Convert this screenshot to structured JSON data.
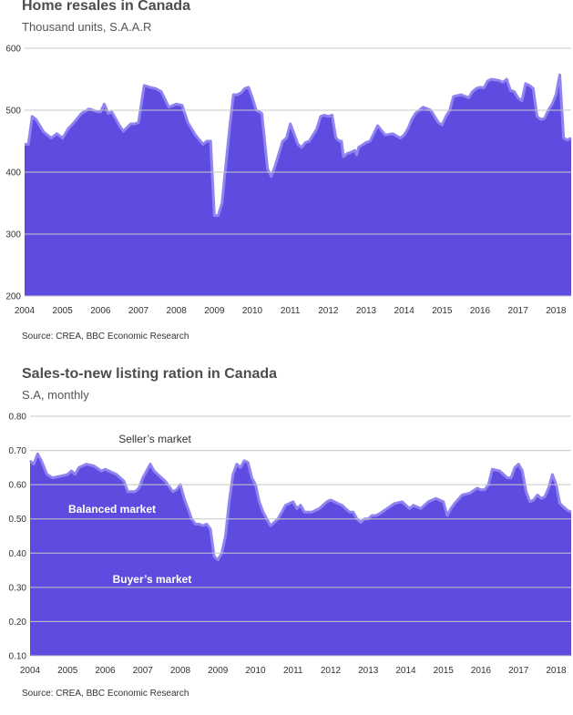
{
  "chart_data": [
    {
      "type": "area",
      "title": "Home resales in Canada",
      "subtitle": "Thousand units, S.A.A.R",
      "source": "Source: CREA, BBC Economic Research",
      "ylim": [
        200,
        600
      ],
      "xlim": [
        2004,
        2018.4
      ],
      "yticks": [
        "200",
        "300",
        "400",
        "500",
        "600"
      ],
      "xticks": [
        "2004",
        "2005",
        "2006",
        "2007",
        "2008",
        "2009",
        "2010",
        "2011",
        "2012",
        "2013",
        "2014",
        "2015",
        "2016",
        "2017",
        "2018"
      ],
      "grid": true,
      "series": [
        {
          "color": "#5e4ce0",
          "line_color": "#8f84f0",
          "x": [
            2004.0,
            2004.1,
            2004.2,
            2004.3,
            2004.5,
            2004.7,
            2004.85,
            2005.0,
            2005.15,
            2005.3,
            2005.5,
            2005.7,
            2005.9,
            2006.0,
            2006.1,
            2006.2,
            2006.3,
            2006.5,
            2006.6,
            2006.8,
            2006.9,
            2007.0,
            2007.15,
            2007.3,
            2007.45,
            2007.6,
            2007.8,
            2008.0,
            2008.15,
            2008.3,
            2008.5,
            2008.7,
            2008.8,
            2008.9,
            2009.0,
            2009.1,
            2009.2,
            2009.3,
            2009.4,
            2009.5,
            2009.6,
            2009.7,
            2009.8,
            2009.9,
            2010.0,
            2010.1,
            2010.25,
            2010.4,
            2010.5,
            2010.6,
            2010.7,
            2010.8,
            2010.9,
            2011.0,
            2011.1,
            2011.2,
            2011.3,
            2011.4,
            2011.5,
            2011.6,
            2011.7,
            2011.8,
            2011.9,
            2012.0,
            2012.1,
            2012.2,
            2012.3,
            2012.35,
            2012.4,
            2012.5,
            2012.6,
            2012.7,
            2012.75,
            2012.8,
            2012.9,
            2013.0,
            2013.1,
            2013.2,
            2013.3,
            2013.5,
            2013.7,
            2013.9,
            2014.0,
            2014.1,
            2014.2,
            2014.3,
            2014.5,
            2014.7,
            2014.9,
            2015.0,
            2015.1,
            2015.2,
            2015.3,
            2015.5,
            2015.7,
            2015.8,
            2015.9,
            2016.0,
            2016.1,
            2016.2,
            2016.3,
            2016.5,
            2016.6,
            2016.7,
            2016.8,
            2016.9,
            2017.0,
            2017.1,
            2017.2,
            2017.3,
            2017.4,
            2017.5,
            2017.6,
            2017.7,
            2017.8,
            2017.9,
            2018.0,
            2018.1,
            2018.2,
            2018.3,
            2018.4
          ],
          "values": [
            445,
            445,
            490,
            485,
            465,
            455,
            462,
            455,
            470,
            480,
            495,
            502,
            498,
            497,
            510,
            495,
            497,
            475,
            466,
            478,
            478,
            480,
            540,
            537,
            535,
            530,
            505,
            510,
            508,
            480,
            460,
            445,
            450,
            450,
            330,
            330,
            350,
            410,
            470,
            525,
            525,
            528,
            535,
            537,
            520,
            500,
            495,
            405,
            393,
            410,
            430,
            450,
            455,
            478,
            462,
            445,
            440,
            448,
            450,
            460,
            470,
            490,
            492,
            490,
            492,
            455,
            450,
            450,
            425,
            430,
            432,
            435,
            428,
            440,
            444,
            448,
            450,
            462,
            475,
            460,
            462,
            455,
            460,
            470,
            485,
            495,
            505,
            500,
            480,
            476,
            490,
            500,
            522,
            525,
            520,
            530,
            535,
            537,
            536,
            547,
            550,
            548,
            545,
            550,
            532,
            530,
            520,
            515,
            543,
            540,
            535,
            490,
            485,
            487,
            500,
            510,
            525,
            557,
            455,
            452,
            455
          ]
        }
      ]
    },
    {
      "type": "area",
      "title": "Sales-to-new listing ration in Canada",
      "subtitle": "S.A, monthly",
      "source": "Source: CREA, BBC Economic Research",
      "ylim": [
        0.1,
        0.8
      ],
      "xlim": [
        2004,
        2018.4
      ],
      "yticks": [
        "0.10",
        "0.20",
        "0.30",
        "0.40",
        "0.50",
        "0.60",
        "0.70",
        "0.80"
      ],
      "xticks": [
        "2004",
        "2005",
        "2006",
        "2007",
        "2008",
        "2009",
        "2010",
        "2011",
        "2012",
        "2013",
        "2014",
        "2015",
        "2016",
        "2017",
        "2018"
      ],
      "grid": true,
      "annotations": [
        "Seller’s market",
        "Balanced market",
        "Buyer’s market"
      ],
      "series": [
        {
          "color": "#5e4ce0",
          "line_color": "#8f84f0",
          "x": [
            2004.0,
            2004.1,
            2004.2,
            2004.3,
            2004.45,
            2004.6,
            2004.8,
            2005.0,
            2005.1,
            2005.2,
            2005.3,
            2005.5,
            2005.7,
            2005.9,
            2006.0,
            2006.1,
            2006.3,
            2006.5,
            2006.6,
            2006.8,
            2006.9,
            2007.0,
            2007.1,
            2007.2,
            2007.3,
            2007.5,
            2007.6,
            2007.8,
            2007.9,
            2008.0,
            2008.1,
            2008.2,
            2008.3,
            2008.4,
            2008.5,
            2008.6,
            2008.7,
            2008.8,
            2008.9,
            2009.0,
            2009.1,
            2009.2,
            2009.3,
            2009.4,
            2009.5,
            2009.6,
            2009.7,
            2009.8,
            2009.9,
            2010.0,
            2010.1,
            2010.2,
            2010.3,
            2010.4,
            2010.5,
            2010.6,
            2010.7,
            2010.8,
            2010.9,
            2011.0,
            2011.1,
            2011.2,
            2011.3,
            2011.5,
            2011.7,
            2011.9,
            2012.0,
            2012.1,
            2012.2,
            2012.3,
            2012.5,
            2012.6,
            2012.7,
            2012.8,
            2012.9,
            2013.0,
            2013.1,
            2013.2,
            2013.3,
            2013.5,
            2013.7,
            2013.9,
            2014.0,
            2014.1,
            2014.2,
            2014.4,
            2014.6,
            2014.8,
            2014.9,
            2015.0,
            2015.1,
            2015.2,
            2015.3,
            2015.5,
            2015.7,
            2015.9,
            2016.0,
            2016.1,
            2016.2,
            2016.3,
            2016.5,
            2016.6,
            2016.7,
            2016.8,
            2016.9,
            2017.0,
            2017.1,
            2017.2,
            2017.3,
            2017.4,
            2017.5,
            2017.6,
            2017.7,
            2017.8,
            2017.9,
            2018.0,
            2018.1,
            2018.2,
            2018.3,
            2018.4
          ],
          "values": [
            0.67,
            0.66,
            0.69,
            0.67,
            0.63,
            0.62,
            0.625,
            0.63,
            0.64,
            0.63,
            0.65,
            0.66,
            0.655,
            0.64,
            0.645,
            0.64,
            0.63,
            0.61,
            0.58,
            0.58,
            0.59,
            0.62,
            0.64,
            0.66,
            0.64,
            0.62,
            0.61,
            0.58,
            0.585,
            0.6,
            0.56,
            0.53,
            0.5,
            0.485,
            0.485,
            0.48,
            0.485,
            0.47,
            0.39,
            0.38,
            0.4,
            0.45,
            0.55,
            0.63,
            0.66,
            0.65,
            0.67,
            0.665,
            0.62,
            0.6,
            0.55,
            0.52,
            0.5,
            0.48,
            0.49,
            0.5,
            0.52,
            0.54,
            0.545,
            0.55,
            0.53,
            0.54,
            0.52,
            0.52,
            0.53,
            0.55,
            0.555,
            0.55,
            0.545,
            0.54,
            0.52,
            0.52,
            0.5,
            0.49,
            0.5,
            0.5,
            0.51,
            0.51,
            0.515,
            0.53,
            0.545,
            0.55,
            0.54,
            0.53,
            0.54,
            0.53,
            0.55,
            0.56,
            0.555,
            0.55,
            0.51,
            0.53,
            0.545,
            0.57,
            0.575,
            0.59,
            0.585,
            0.585,
            0.6,
            0.645,
            0.64,
            0.63,
            0.62,
            0.62,
            0.65,
            0.66,
            0.64,
            0.58,
            0.55,
            0.555,
            0.57,
            0.56,
            0.565,
            0.59,
            0.63,
            0.6,
            0.545,
            0.535,
            0.525,
            0.52
          ]
        }
      ]
    }
  ]
}
